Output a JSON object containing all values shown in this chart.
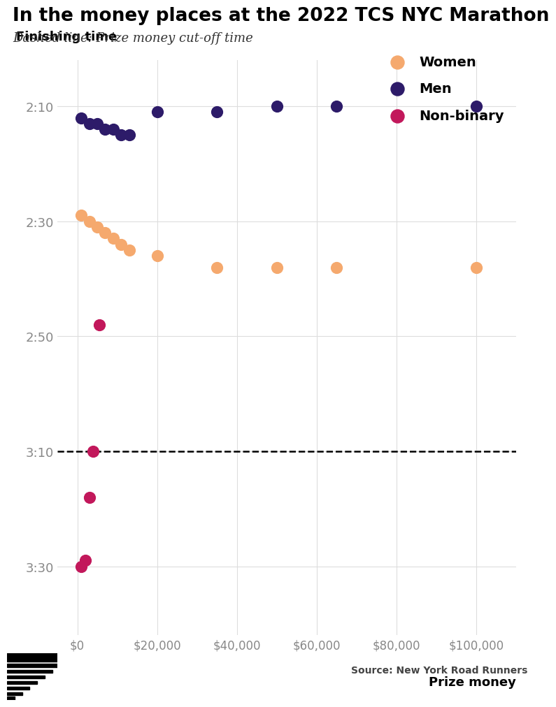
{
  "title": "In the money places at the 2022 TCS NYC Marathon",
  "subtitle": "Dashed line: Prize money cut-off time",
  "ylabel": "Finishing time",
  "xlabel": "Prize money",
  "source": "Source: New York Road Runners",
  "dashed_line_y": 190,
  "women_color": "#F5A96E",
  "men_color": "#2D1B69",
  "nonbinary_color": "#C2185B",
  "background_color": "#FFFFFF",
  "grid_color": "#DDDDDD",
  "women_data": [
    [
      1000,
      149
    ],
    [
      3000,
      150
    ],
    [
      5000,
      151
    ],
    [
      7000,
      152
    ],
    [
      9000,
      153
    ],
    [
      11000,
      154
    ],
    [
      13000,
      155
    ],
    [
      20000,
      156
    ],
    [
      35000,
      158
    ],
    [
      50000,
      158
    ],
    [
      65000,
      158
    ],
    [
      100000,
      158
    ]
  ],
  "men_data": [
    [
      1000,
      132
    ],
    [
      3000,
      133
    ],
    [
      5000,
      133
    ],
    [
      7000,
      134
    ],
    [
      9000,
      134
    ],
    [
      11000,
      135
    ],
    [
      13000,
      135
    ],
    [
      20000,
      131
    ],
    [
      35000,
      131
    ],
    [
      50000,
      130
    ],
    [
      65000,
      130
    ],
    [
      100000,
      130
    ]
  ],
  "nonbinary_data": [
    [
      1000,
      210
    ],
    [
      2000,
      209
    ],
    [
      3000,
      198
    ],
    [
      4000,
      190
    ],
    [
      5500,
      168
    ]
  ],
  "yticks": [
    130,
    150,
    170,
    190,
    210
  ],
  "ytick_labels": [
    "2:10",
    "2:30",
    "2:50",
    "3:10",
    "3:30"
  ],
  "xticks": [
    0,
    20000,
    40000,
    60000,
    80000,
    100000
  ],
  "xtick_labels": [
    "$0",
    "$20,000",
    "$40,000",
    "$60,000",
    "$80,000",
    "$100,000"
  ],
  "xlim": [
    -5000,
    110000
  ],
  "ylim": [
    122,
    222
  ]
}
